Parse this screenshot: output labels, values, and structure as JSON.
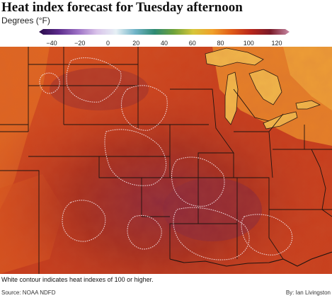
{
  "header": {
    "title": "Heat index forecast for Tuesday afternoon",
    "subtitle": "Degrees (°F)"
  },
  "legend": {
    "ticks": [
      "−40",
      "−20",
      "0",
      "20",
      "40",
      "60",
      "80",
      "100",
      "120"
    ],
    "gradient_colors": [
      "#2a0c4a",
      "#5a2a8a",
      "#9b6fc4",
      "#d9c3ea",
      "#e6f0f5",
      "#6fb3c7",
      "#2e8a73",
      "#6da23a",
      "#d6c63a",
      "#f0a12a",
      "#e05a17",
      "#b8261b",
      "#7a1a28",
      "#c98aa6"
    ]
  },
  "map": {
    "region": "Central and Eastern United States",
    "colors": {
      "heat_hot": "#d2461f",
      "heat_hotter": "#b8341f",
      "heat_extreme": "#8e2a3a",
      "heat_warm": "#e57a23",
      "heat_mild": "#f2ab3c",
      "lake": "#f1b74a",
      "border": "#1f1410",
      "contour": "#f3dfe3"
    }
  },
  "footer": {
    "note": "White contour indicates heat indexes of 100 or higher.",
    "source": "Source: NOAA NDFD",
    "byline": "By: Ian Livingston"
  }
}
